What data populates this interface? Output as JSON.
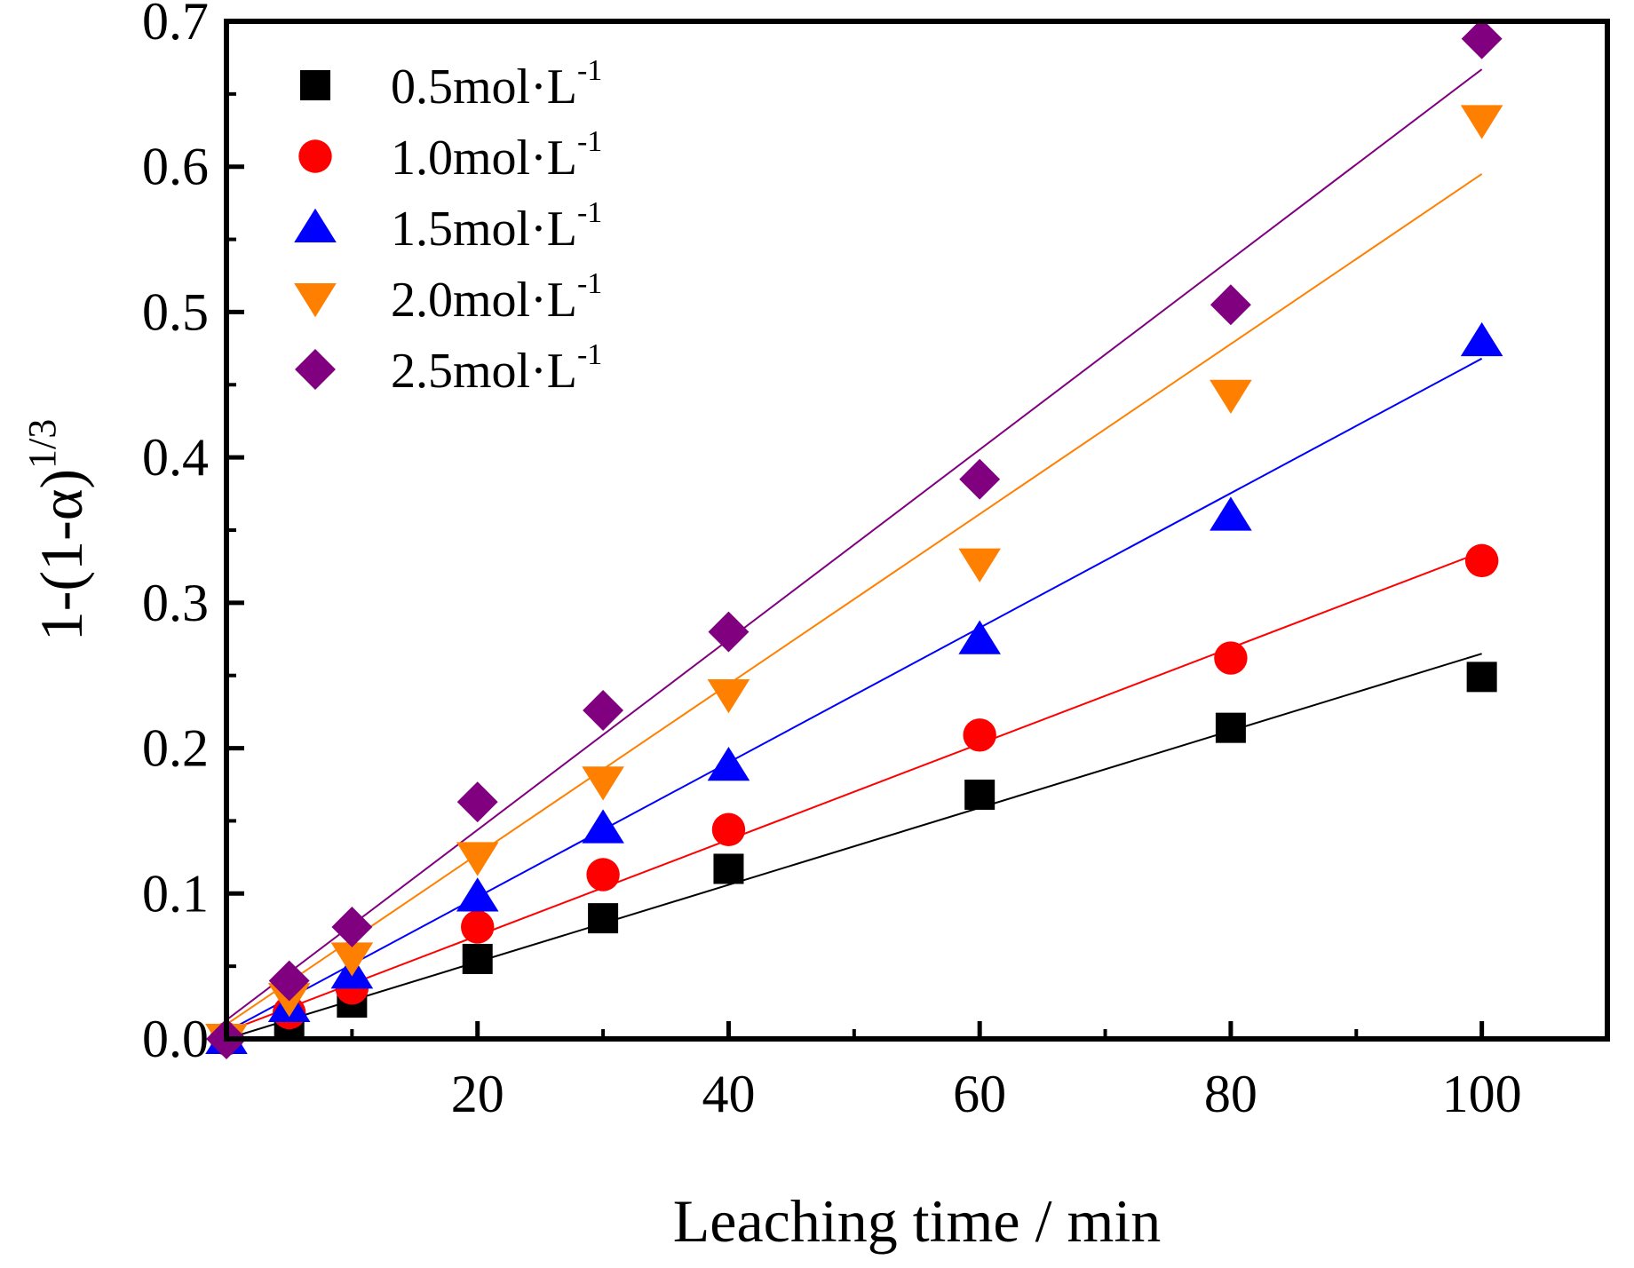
{
  "chart_data": {
    "type": "scatter",
    "title": "",
    "xlabel": "Leaching time / min",
    "ylabel": {
      "base": "1-(1-α)",
      "superscript": "1/3"
    },
    "xlim": [
      0,
      110
    ],
    "ylim": [
      0,
      0.7
    ],
    "x_ticks": [
      20,
      40,
      60,
      80,
      100
    ],
    "x_tick_labels": [
      "20",
      "40",
      "60",
      "80",
      "100"
    ],
    "x_minor_ticks": [
      10,
      30,
      50,
      70,
      90,
      110
    ],
    "y_ticks": [
      0.0,
      0.1,
      0.2,
      0.3,
      0.4,
      0.5,
      0.6,
      0.7
    ],
    "y_tick_labels": [
      "0.0",
      "0.1",
      "0.2",
      "0.3",
      "0.4",
      "0.5",
      "0.6",
      "0.7"
    ],
    "grid": false,
    "legend_position": "top-left",
    "x": [
      0,
      5,
      10,
      20,
      30,
      40,
      60,
      80,
      100
    ],
    "series": [
      {
        "name": "0.5mol·L",
        "name_superscript": "-1",
        "marker": "square",
        "color": "#000000",
        "values": [
          0,
          0.01,
          0.025,
          0.055,
          0.083,
          0.117,
          0.168,
          0.214,
          0.249
        ],
        "fit_line": [
          0,
          0.265
        ]
      },
      {
        "name": "1.0mol·L",
        "name_superscript": "-1",
        "marker": "circle",
        "color": "#ff0000",
        "values": [
          0,
          0.018,
          0.035,
          0.077,
          0.113,
          0.144,
          0.209,
          0.262,
          0.329
        ],
        "fit_line": [
          0.005,
          0.335
        ]
      },
      {
        "name": "1.5mol·L",
        "name_superscript": "-1",
        "marker": "triangle-up",
        "color": "#0000ff",
        "values": [
          0,
          0.022,
          0.045,
          0.098,
          0.145,
          0.188,
          0.275,
          0.36,
          0.48
        ],
        "fit_line": [
          0.005,
          0.468
        ]
      },
      {
        "name": "2.0mol·L",
        "name_superscript": "-1",
        "marker": "triangle-down",
        "color": "#ff8000",
        "values": [
          0,
          0.028,
          0.056,
          0.125,
          0.177,
          0.237,
          0.327,
          0.443,
          0.632
        ],
        "fit_line": [
          0.01,
          0.595
        ]
      },
      {
        "name": "2.5mol·L",
        "name_superscript": "-1",
        "marker": "diamond",
        "color": "#800080",
        "values": [
          0,
          0.04,
          0.077,
          0.163,
          0.226,
          0.28,
          0.385,
          0.505,
          0.688
        ],
        "fit_line": [
          0.013,
          0.667
        ]
      }
    ]
  }
}
